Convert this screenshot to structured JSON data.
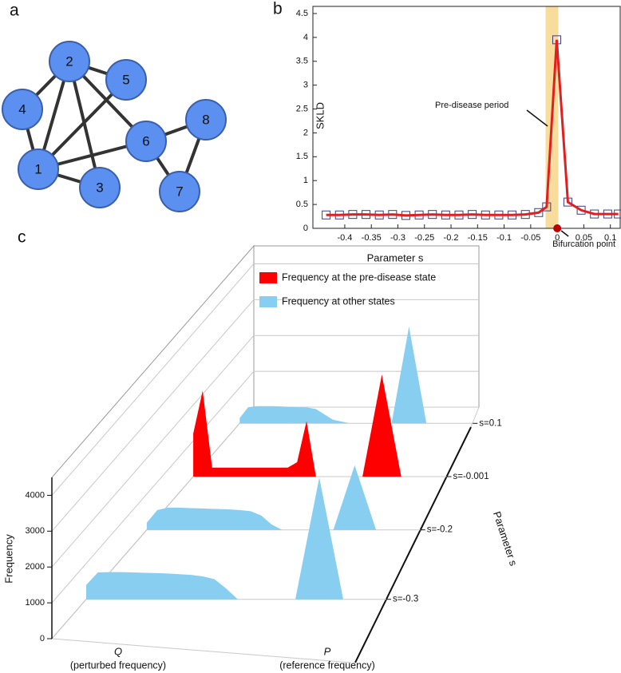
{
  "panel_labels": [
    "a",
    "b",
    "c"
  ],
  "network": {
    "nodes": [
      "1",
      "2",
      "3",
      "4",
      "5",
      "6",
      "7",
      "8"
    ],
    "edges": [
      [
        "2",
        "4"
      ],
      [
        "2",
        "5"
      ],
      [
        "2",
        "1"
      ],
      [
        "2",
        "3"
      ],
      [
        "2",
        "6"
      ],
      [
        "4",
        "1"
      ],
      [
        "1",
        "5"
      ],
      [
        "1",
        "6"
      ],
      [
        "1",
        "3"
      ],
      [
        "6",
        "8"
      ],
      [
        "6",
        "7"
      ],
      [
        "8",
        "7"
      ]
    ]
  },
  "chart_data": [
    {
      "type": "line",
      "xlabel": "Parameter s",
      "ylabel": "SKLD",
      "x": [
        -0.435,
        -0.41,
        -0.385,
        -0.36,
        -0.335,
        -0.31,
        -0.285,
        -0.26,
        -0.235,
        -0.21,
        -0.185,
        -0.16,
        -0.135,
        -0.11,
        -0.085,
        -0.06,
        -0.035,
        -0.02,
        -0.001,
        0.02,
        0.045,
        0.07,
        0.095,
        0.115
      ],
      "values": [
        0.28,
        0.28,
        0.29,
        0.29,
        0.28,
        0.29,
        0.27,
        0.28,
        0.29,
        0.28,
        0.28,
        0.29,
        0.28,
        0.28,
        0.28,
        0.29,
        0.33,
        0.45,
        3.95,
        0.55,
        0.38,
        0.3,
        0.3,
        0.3
      ],
      "color": "#e02020",
      "marker_color": "#3d3d8a",
      "xlim": [
        -0.46,
        0.12
      ],
      "ylim": [
        0,
        4.65
      ],
      "xticks": [
        -0.4,
        -0.35,
        -0.3,
        -0.25,
        -0.2,
        -0.15,
        -0.1,
        -0.05,
        0,
        0.05,
        0.1
      ],
      "yticks": [
        0,
        0.5,
        1,
        1.5,
        2,
        2.5,
        3,
        3.5,
        4,
        4.5
      ],
      "highlight": [
        -0.022,
        0.002
      ],
      "highlight_color": "#f7dc9b",
      "annotations": [
        {
          "text": "Pre-disease period"
        },
        {
          "text": "Bifurcation point",
          "x": 0,
          "y": 0
        }
      ]
    },
    {
      "type": "ridge3d",
      "zlabel": "Frequency",
      "depth_label": "Parameter s",
      "zlim": [
        0,
        4500
      ],
      "zticks": [
        0,
        1000,
        2000,
        3000,
        4000
      ],
      "x_labels": [
        {
          "name": "Q",
          "description": "(perturbed frequency)"
        },
        {
          "name": "P",
          "description": "(reference frequency)"
        }
      ],
      "legend": [
        {
          "name": "Frequency at the pre-disease state",
          "color": "#ff0000"
        },
        {
          "name": "Frequency at other states",
          "color": "#87cef0"
        }
      ],
      "rows": [
        {
          "label": "s=-0.3",
          "color": "#87cef0",
          "q_profile": [
            400,
            750,
            760,
            760,
            750,
            740,
            730,
            720,
            700,
            680,
            640,
            560,
            300,
            0
          ],
          "p_peak": 3400
        },
        {
          "label": "s=-0.2",
          "color": "#87cef0",
          "q_profile": [
            200,
            550,
            620,
            620,
            610,
            600,
            590,
            580,
            570,
            550,
            520,
            400,
            150,
            0
          ],
          "p_peak": 1800
        },
        {
          "label": "s=-0.001",
          "color": "#ff0000",
          "q_profile": [
            1200,
            2400,
            250,
            250,
            250,
            250,
            250,
            250,
            250,
            250,
            250,
            400,
            1550,
            0
          ],
          "p_peak": 2850
        },
        {
          "label": "s=0.1",
          "color": "#87cef0",
          "q_profile": [
            150,
            450,
            480,
            480,
            480,
            470,
            460,
            450,
            440,
            400,
            250,
            100,
            50,
            0
          ],
          "p_peak": 2700
        }
      ]
    }
  ]
}
